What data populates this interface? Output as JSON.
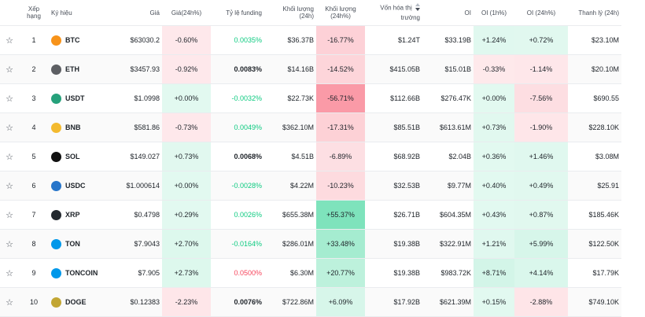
{
  "colors": {
    "positive": "#0ecb81",
    "negative": "#f6465d",
    "neutral": "#1e2329"
  },
  "headers": {
    "rank": "Xếp hạng",
    "symbol": "Ký hiệu",
    "price": "Giá",
    "change24h": "Giá(24h%)",
    "funding": "Tỷ lệ funding",
    "volume": "Khối lượng (24h)",
    "volume_change": "Khối lượng (24h%)",
    "mcap_line1": "Vốn hóa thị",
    "mcap_line2": "trường",
    "oi": "OI",
    "oi1h": "OI (1h%)",
    "oi24h": "OI (24h%)",
    "liq": "Thanh lý (24h)"
  },
  "rows": [
    {
      "rank": "1",
      "symbol": "BTC",
      "icon": "bitcoin-icon",
      "icon_color": "#f7931a",
      "price": "$63030.2",
      "change": "-0.60%",
      "funding": "0.0035%",
      "funding_tone": "pos",
      "volume": "$36.37B",
      "vol_change": "-16.77%",
      "mcap": "$1.24T",
      "oi": "$33.19B",
      "oi1h": "+1.24%",
      "oi24h": "+0.72%",
      "liq": "$23.10M"
    },
    {
      "rank": "2",
      "symbol": "ETH",
      "icon": "ethereum-icon",
      "icon_color": "#5d5f63",
      "price": "$3457.93",
      "change": "-0.92%",
      "funding": "0.0083%",
      "funding_tone": "dark",
      "volume": "$14.16B",
      "vol_change": "-14.52%",
      "mcap": "$415.05B",
      "oi": "$15.01B",
      "oi1h": "-0.33%",
      "oi24h": "-1.14%",
      "liq": "$20.10M"
    },
    {
      "rank": "3",
      "symbol": "USDT",
      "icon": "tether-icon",
      "icon_color": "#26a17b",
      "price": "$1.0998",
      "change": "+0.00%",
      "funding": "-0.0032%",
      "funding_tone": "pos",
      "volume": "$22.73K",
      "vol_change": "-56.71%",
      "mcap": "$112.66B",
      "oi": "$276.47K",
      "oi1h": "+0.00%",
      "oi24h": "-7.56%",
      "liq": "$690.55"
    },
    {
      "rank": "4",
      "symbol": "BNB",
      "icon": "bnb-icon",
      "icon_color": "#f3ba2f",
      "price": "$581.86",
      "change": "-0.73%",
      "funding": "0.0049%",
      "funding_tone": "pos",
      "volume": "$362.10M",
      "vol_change": "-17.31%",
      "mcap": "$85.51B",
      "oi": "$613.61M",
      "oi1h": "+0.73%",
      "oi24h": "-1.90%",
      "liq": "$228.10K"
    },
    {
      "rank": "5",
      "symbol": "SOL",
      "icon": "solana-icon",
      "icon_color": "#111111",
      "price": "$149.027",
      "change": "+0.73%",
      "funding": "0.0068%",
      "funding_tone": "dark",
      "volume": "$4.51B",
      "vol_change": "-6.89%",
      "mcap": "$68.92B",
      "oi": "$2.04B",
      "oi1h": "+0.36%",
      "oi24h": "+1.46%",
      "liq": "$3.08M"
    },
    {
      "rank": "6",
      "symbol": "USDC",
      "icon": "usdc-icon",
      "icon_color": "#2775ca",
      "price": "$1.000614",
      "change": "+0.00%",
      "funding": "-0.0028%",
      "funding_tone": "pos",
      "volume": "$4.22M",
      "vol_change": "-10.23%",
      "mcap": "$32.53B",
      "oi": "$9.77M",
      "oi1h": "+0.40%",
      "oi24h": "+0.49%",
      "liq": "$25.91"
    },
    {
      "rank": "7",
      "symbol": "XRP",
      "icon": "xrp-icon",
      "icon_color": "#23292f",
      "price": "$0.4798",
      "change": "+0.29%",
      "funding": "0.0026%",
      "funding_tone": "pos",
      "volume": "$655.38M",
      "vol_change": "+55.37%",
      "mcap": "$26.71B",
      "oi": "$604.35M",
      "oi1h": "+0.43%",
      "oi24h": "+0.87%",
      "liq": "$185.46K"
    },
    {
      "rank": "8",
      "symbol": "TON",
      "icon": "ton-icon",
      "icon_color": "#0098ea",
      "price": "$7.9043",
      "change": "+2.70%",
      "funding": "-0.0164%",
      "funding_tone": "pos",
      "volume": "$286.01M",
      "vol_change": "+33.48%",
      "mcap": "$19.38B",
      "oi": "$322.91M",
      "oi1h": "+1.21%",
      "oi24h": "+5.99%",
      "liq": "$122.50K"
    },
    {
      "rank": "9",
      "symbol": "TONCOIN",
      "icon": "toncoin-icon",
      "icon_color": "#0098ea",
      "price": "$7.905",
      "change": "+2.73%",
      "funding": "0.0500%",
      "funding_tone": "neg",
      "volume": "$6.30M",
      "vol_change": "+20.77%",
      "mcap": "$19.38B",
      "oi": "$983.72K",
      "oi1h": "+8.71%",
      "oi24h": "+4.14%",
      "liq": "$17.79K"
    },
    {
      "rank": "10",
      "symbol": "DOGE",
      "icon": "dogecoin-icon",
      "icon_color": "#c2a633",
      "price": "$0.12383",
      "change": "-2.23%",
      "funding": "0.0076%",
      "funding_tone": "dark",
      "volume": "$722.86M",
      "vol_change": "+6.09%",
      "mcap": "$17.92B",
      "oi": "$621.39M",
      "oi1h": "+0.15%",
      "oi24h": "-2.88%",
      "liq": "$749.10K"
    }
  ]
}
